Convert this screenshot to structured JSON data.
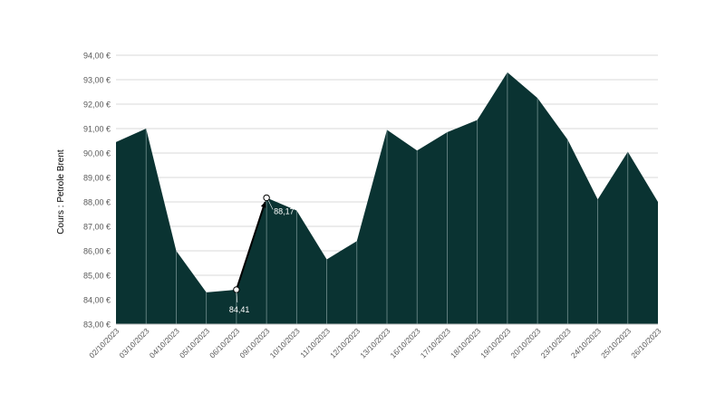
{
  "chart_data": {
    "type": "area",
    "ylabel": "Cours : Petrole Brent",
    "xlabel": "",
    "title": "",
    "ylim": [
      83,
      94
    ],
    "y_ticks": [
      "83,00 €",
      "84,00 €",
      "85,00 €",
      "86,00 €",
      "87,00 €",
      "88,00 €",
      "89,00 €",
      "90,00 €",
      "91,00 €",
      "92,00 €",
      "93,00 €",
      "94,00 €"
    ],
    "categories": [
      "02/10/2023",
      "03/10/2023",
      "04/10/2023",
      "05/10/2023",
      "06/10/2023",
      "09/10/2023",
      "10/10/2023",
      "11/10/2023",
      "12/10/2023",
      "13/10/2023",
      "16/10/2023",
      "17/10/2023",
      "18/10/2023",
      "19/10/2023",
      "20/10/2023",
      "23/10/2023",
      "24/10/2023",
      "25/10/2023",
      "26/10/2023"
    ],
    "values": [
      90.45,
      91.0,
      86.0,
      84.3,
      84.41,
      88.17,
      87.65,
      85.65,
      86.4,
      90.95,
      90.1,
      90.85,
      91.35,
      93.3,
      92.25,
      90.55,
      88.1,
      90.05,
      88.0
    ],
    "annotations": [
      {
        "category": "06/10/2023",
        "value": 84.41,
        "label": "84,41"
      },
      {
        "category": "09/10/2023",
        "value": 88.17,
        "label": "88,17"
      }
    ],
    "grid": true,
    "colors": {
      "area": "#0a3332",
      "divider": "#9fb7b6",
      "grid": "#d9d9d9",
      "axis_text": "#595959",
      "arrow": "#000000"
    }
  }
}
